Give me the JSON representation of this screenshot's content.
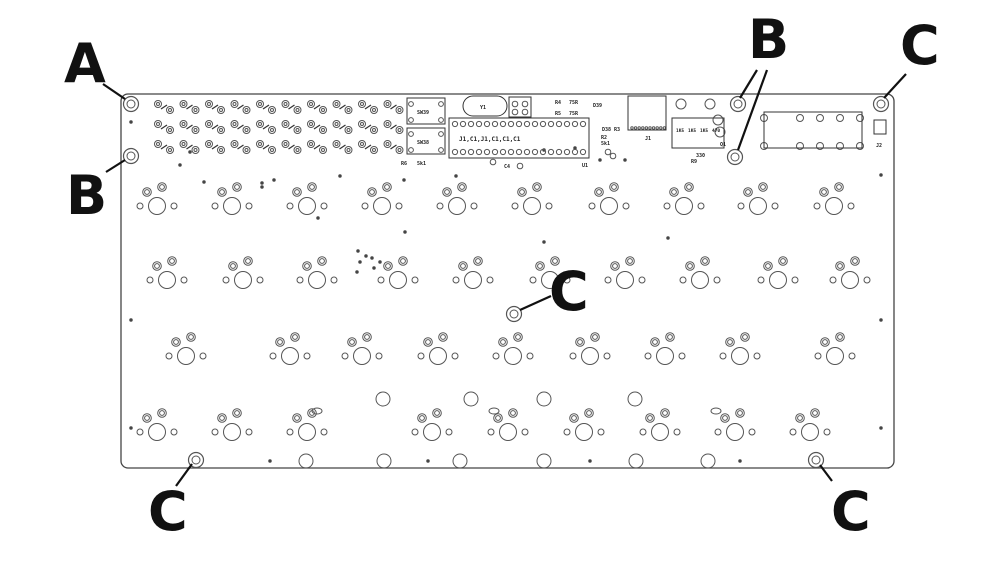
{
  "diagram": {
    "callouts": {
      "a_top_left": "A",
      "b_left": "B",
      "b_top_right": "B",
      "c_top_right": "C",
      "c_center": "C",
      "c_bottom_left": "C",
      "c_bottom_right": "C"
    },
    "pcb": {
      "switch_sw39": "SW39",
      "switch_sw38": "SW38",
      "header_label": "J1,C1,J1,C1,C1,C1",
      "chip_u1": "U1",
      "crystal_y1": "Y1",
      "res_r6": "R6",
      "res_r6_value": "5k1",
      "res_r4": "R4",
      "res_r4_value": "75R",
      "res_r5": "R5",
      "res_r5_value": "75R",
      "res_r2": "R2",
      "res_r2_value": "5k1",
      "res_r3": "R3",
      "d39": "D39",
      "d38": "D38",
      "cap_c4": "C4",
      "conn_j1": "J1",
      "conn_j2": "J2",
      "q1": "Q1",
      "r9": "R9",
      "r9_value": "330",
      "rn_values": [
        "1K5",
        "1K5",
        "1K5",
        "470"
      ]
    },
    "colors": {
      "board_outline": "#444444",
      "hole_stroke": "#555555",
      "callout_text": "#111111",
      "leader_line": "#111111",
      "background": "#ffffff"
    }
  }
}
